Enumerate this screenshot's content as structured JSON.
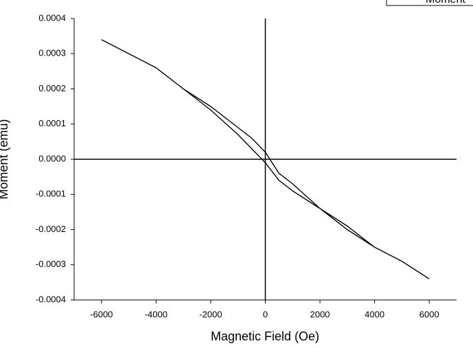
{
  "chart_data": {
    "type": "line",
    "xlabel": "Magnetic Field (Oe)",
    "ylabel": "Moment (emu)",
    "series": [
      {
        "name": "Moment",
        "color": "#000000",
        "x": [
          -6000,
          -5000,
          -4000,
          -3000,
          -2000,
          -1000,
          -500,
          0,
          500,
          1000,
          2000,
          3000,
          4000,
          5000,
          6000,
          6000,
          5000,
          4000,
          3000,
          2000,
          1000,
          500,
          0,
          -500,
          -1000,
          -2000,
          -3000,
          -4000,
          -5000,
          -6000
        ],
        "values": [
          0.00034,
          0.0003,
          0.00026,
          0.0002,
          0.00014,
          7e-05,
          3e-05,
          -1e-05,
          -6e-05,
          -9e-05,
          -0.00014,
          -0.0002,
          -0.00025,
          -0.00029,
          -0.00034,
          -0.00034,
          -0.00029,
          -0.00025,
          -0.00019,
          -0.00014,
          -7e-05,
          -4e-05,
          2e-05,
          6e-05,
          9e-05,
          0.00015,
          0.0002,
          0.00026,
          0.0003,
          0.00034
        ]
      }
    ],
    "xlim": [
      -7000,
      7000
    ],
    "xticks": [
      -6000,
      -4000,
      -2000,
      0,
      2000,
      4000,
      6000
    ],
    "ylim": [
      -0.0004,
      0.0004
    ],
    "yticks": [
      {
        "value": -0.0004,
        "label": "-0.0004"
      },
      {
        "value": -0.0003,
        "label": "-0.0003"
      },
      {
        "value": -0.0002,
        "label": "-0.0002"
      },
      {
        "value": -0.0001,
        "label": "-0.0001"
      },
      {
        "value": 0,
        "label": "0.0000"
      },
      {
        "value": 0.0001,
        "label": "0.0001"
      },
      {
        "value": 0.0002,
        "label": "0.0002"
      },
      {
        "value": 0.0003,
        "label": "0.0003"
      },
      {
        "value": 0.0004,
        "label": "0.0004"
      }
    ],
    "legend": "top-right"
  }
}
